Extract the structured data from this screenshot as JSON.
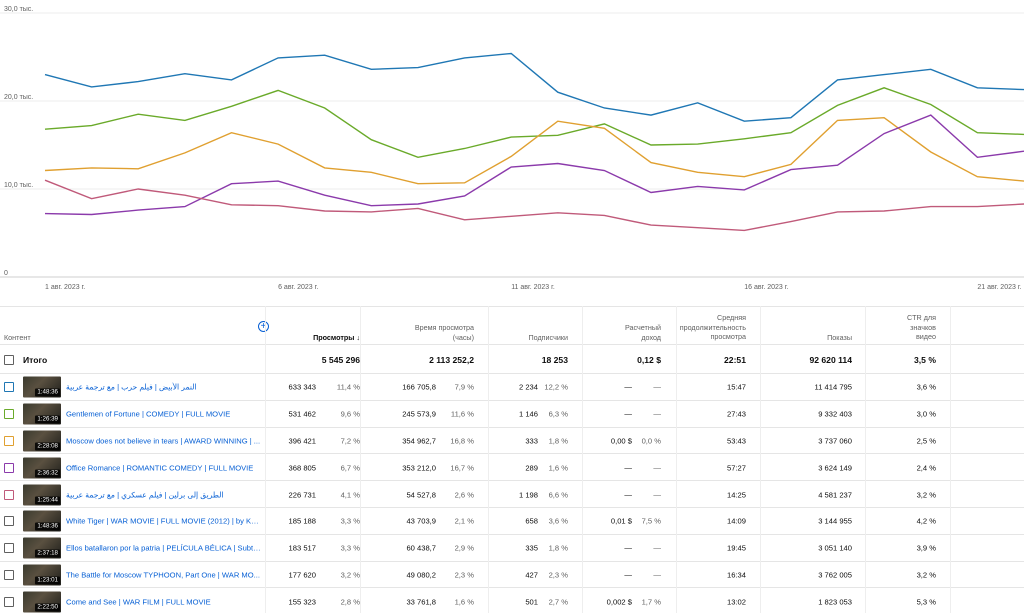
{
  "chart_data": {
    "type": "line",
    "y_ticks": [
      "30,0 тыс.",
      "20,0 тыс.",
      "10,0 тыс.",
      "0"
    ],
    "ylim": [
      0,
      30000
    ],
    "x_tick_labels": [
      {
        "label": "1 авг. 2023 г.",
        "index": 0
      },
      {
        "label": "6 авг. 2023 г.",
        "index": 5
      },
      {
        "label": "11 авг. 2023 г.",
        "index": 10
      },
      {
        "label": "16 авг. 2023 г.",
        "index": 15
      },
      {
        "label": "21 авг. 2023 г.",
        "index": 20
      }
    ],
    "grid": true,
    "series": [
      {
        "color": "#1f77b4",
        "values": [
          23000,
          21600,
          22200,
          23100,
          22400,
          24900,
          25200,
          23600,
          23800,
          24900,
          25400,
          21000,
          19200,
          18400,
          19800,
          17700,
          18100,
          22400,
          23000,
          23600,
          21500,
          21300
        ]
      },
      {
        "color": "#6aaa2a",
        "values": [
          16800,
          17200,
          18500,
          17800,
          19400,
          21200,
          19200,
          15600,
          13600,
          14600,
          15900,
          16100,
          17400,
          15000,
          15100,
          15700,
          16400,
          19500,
          21500,
          19600,
          16400,
          16200
        ]
      },
      {
        "color": "#e0a030",
        "values": [
          12100,
          12400,
          12300,
          14100,
          16400,
          15100,
          12400,
          11900,
          10600,
          10700,
          13700,
          17700,
          16900,
          13000,
          11900,
          11400,
          12800,
          17800,
          18100,
          14200,
          11400,
          10900
        ]
      },
      {
        "color": "#8b3aab",
        "values": [
          7200,
          7100,
          7600,
          8000,
          10600,
          10900,
          9300,
          8100,
          8300,
          9200,
          12500,
          12900,
          12100,
          9600,
          10300,
          9900,
          12200,
          12700,
          16300,
          18400,
          13600,
          14300
        ]
      },
      {
        "color": "#c05a7a",
        "values": [
          11000,
          8900,
          10000,
          9300,
          8200,
          8100,
          7500,
          7400,
          7800,
          6500,
          6900,
          7300,
          7000,
          5900,
          5600,
          5300,
          6300,
          7400,
          7500,
          8000,
          8000,
          8300
        ]
      }
    ]
  },
  "table": {
    "headers": {
      "content": "Контент",
      "views": "Просмотры",
      "sort_arrow": "↓",
      "watch_time": "Время просмотра\n(часы)",
      "subs": "Подписчики",
      "revenue": "Расчетный\nдоход",
      "avg_duration": "Средняя\nпродолжительность\nпросмотра",
      "impressions": "Показы",
      "ctr": "CTR для\nзначков\nвидео"
    },
    "total": {
      "label": "Итого",
      "views": "5 545 296",
      "watch": "2 113 252,2",
      "subs": "18 253",
      "revenue": "0,12 $",
      "avg": "22:51",
      "impr": "92 620 114",
      "ctr": "3,5 %"
    },
    "rows": [
      {
        "color": "#1f77b4",
        "filled": false,
        "dur": "1:48:36",
        "title": "النمر الأبيض | فيلم حرب | مع ترجمة عربية",
        "views": "633 343",
        "vp": "11,4 %",
        "watch": "166 705,8",
        "wp": "7,9 %",
        "subs": "2 234",
        "sp": "12,2 %",
        "rev": "—",
        "rp": "—",
        "avg": "15:47",
        "impr": "11 414 795",
        "ctr": "3,6 %"
      },
      {
        "color": "#6aaa2a",
        "filled": false,
        "dur": "1:26:39",
        "title": "Gentlemen of Fortune | COMEDY | FULL MOVIE",
        "views": "531 462",
        "vp": "9,6 %",
        "watch": "245 573,9",
        "wp": "11,6 %",
        "subs": "1 146",
        "sp": "6,3 %",
        "rev": "—",
        "rp": "—",
        "avg": "27:43",
        "impr": "9 332 403",
        "ctr": "3,0 %"
      },
      {
        "color": "#e0a030",
        "filled": false,
        "dur": "2:28:08",
        "title": "Moscow does not believe in tears | AWARD WINNING | ...",
        "views": "396 421",
        "vp": "7,2 %",
        "watch": "354 962,7",
        "wp": "16,8 %",
        "subs": "333",
        "sp": "1,8 %",
        "rev": "0,00 $",
        "rp": "0,0 %",
        "avg": "53:43",
        "impr": "3 737 060",
        "ctr": "2,5 %"
      },
      {
        "color": "#8b3aab",
        "filled": false,
        "dur": "2:36:32",
        "title": "Office Romance | ROMANTIC COMEDY | FULL MOVIE",
        "views": "368 805",
        "vp": "6,7 %",
        "watch": "353 212,0",
        "wp": "16,7 %",
        "subs": "289",
        "sp": "1,6 %",
        "rev": "—",
        "rp": "—",
        "avg": "57:27",
        "impr": "3 624 149",
        "ctr": "2,4 %"
      },
      {
        "color": "#c05a7a",
        "filled": false,
        "dur": "1:25:44",
        "title": "الطريق إلى برلين | فيلم عسكري | مع ترجمة عربية",
        "views": "226 731",
        "vp": "4,1 %",
        "watch": "54 527,8",
        "wp": "2,6 %",
        "subs": "1 198",
        "sp": "6,6 %",
        "rev": "—",
        "rp": "—",
        "avg": "14:25",
        "impr": "4 581 237",
        "ctr": "3,2 %"
      },
      {
        "color": "#606060",
        "filled": false,
        "dur": "1:48:36",
        "title": "White Tiger | WAR MOVIE | FULL MOVIE (2012) | by Kar...",
        "views": "185 188",
        "vp": "3,3 %",
        "watch": "43 703,9",
        "wp": "2,1 %",
        "subs": "658",
        "sp": "3,6 %",
        "rev": "0,01 $",
        "rp": "7,5 %",
        "avg": "14:09",
        "impr": "3 144 955",
        "ctr": "4,2 %"
      },
      {
        "color": "#606060",
        "filled": false,
        "dur": "2:37:18",
        "title": "Ellos batallaron por la patria | PELÍCULA BÉLICA | Subti...",
        "views": "183 517",
        "vp": "3,3 %",
        "watch": "60 438,7",
        "wp": "2,9 %",
        "subs": "335",
        "sp": "1,8 %",
        "rev": "—",
        "rp": "—",
        "avg": "19:45",
        "impr": "3 051 140",
        "ctr": "3,9 %"
      },
      {
        "color": "#606060",
        "filled": false,
        "dur": "1:23:01",
        "title": "The Battle for Moscow TYPHOON, Part One | WAR MO...",
        "views": "177 620",
        "vp": "3,2 %",
        "watch": "49 080,2",
        "wp": "2,3 %",
        "subs": "427",
        "sp": "2,3 %",
        "rev": "—",
        "rp": "—",
        "avg": "16:34",
        "impr": "3 762 005",
        "ctr": "3,2 %"
      },
      {
        "color": "#606060",
        "filled": false,
        "dur": "2:22:50",
        "title": "Come and See | WAR FILM | FULL MOVIE",
        "views": "155 323",
        "vp": "2,8 %",
        "watch": "33 761,8",
        "wp": "1,6 %",
        "subs": "501",
        "sp": "2,7 %",
        "rev": "0,002 $",
        "rp": "1,7 %",
        "avg": "13:02",
        "impr": "1 823 053",
        "ctr": "5,3 %"
      }
    ]
  }
}
